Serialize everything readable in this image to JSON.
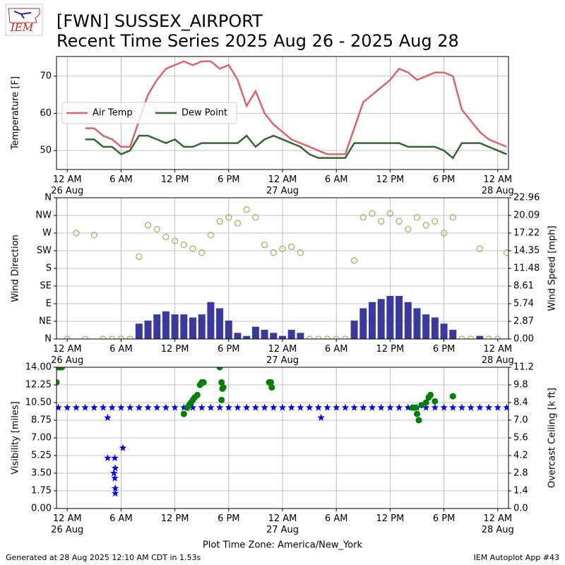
{
  "header": {
    "logo": "IEM",
    "title_line1": "[FWN] SUSSEX_AIRPORT",
    "title_line2": "Recent Time Series 2025 Aug 26 - 2025 Aug 28"
  },
  "footer": {
    "left": "Generated at 28 Aug 2025 12:10 AM CDT in 1.53s",
    "right": "IEM Autoplot App #43"
  },
  "chart_data": [
    {
      "type": "line",
      "ylabel": "Temperature [F]",
      "grid": true,
      "legend": "center left",
      "xlim": [
        -1.2,
        49.2
      ],
      "ylim": [
        44.9,
        75.3
      ],
      "yticks": [
        50,
        60,
        70
      ],
      "xticks": [
        {
          "value": 0,
          "label": "12 AM\n26 Aug"
        },
        {
          "value": 6,
          "label": "6 AM"
        },
        {
          "value": 12,
          "label": "12 PM"
        },
        {
          "value": 18,
          "label": "6 PM"
        },
        {
          "value": 24,
          "label": "12 AM\n27 Aug"
        },
        {
          "value": 30,
          "label": "6 AM"
        },
        {
          "value": 36,
          "label": "12 PM"
        },
        {
          "value": 42,
          "label": "6 PM"
        },
        {
          "value": 48,
          "label": "12 AM\n28 Aug"
        }
      ],
      "x": [
        2,
        3,
        4,
        5,
        6,
        7,
        8,
        9,
        10,
        11,
        12,
        13,
        14,
        15,
        16,
        17,
        18,
        19,
        20,
        21,
        22,
        23,
        24,
        25,
        26,
        27,
        28,
        29,
        30,
        31,
        32,
        33,
        34,
        35,
        36,
        37,
        38,
        39,
        40,
        41,
        42,
        43,
        44,
        45,
        46,
        47,
        48,
        49
      ],
      "series": [
        {
          "name": "Air Temp",
          "color": "#d9646a",
          "values": [
            56,
            56,
            54,
            53,
            51,
            51,
            58,
            65,
            69,
            72,
            73,
            74,
            73,
            74,
            74,
            72,
            73,
            69,
            62,
            66,
            60,
            57,
            55,
            53,
            52,
            51,
            50,
            49,
            49,
            49,
            56,
            63,
            65,
            67,
            69,
            72,
            71,
            69,
            70,
            71,
            71,
            70,
            61,
            58,
            55,
            53,
            52,
            51
          ]
        },
        {
          "name": "Dew Point",
          "color": "#336633",
          "values": [
            53,
            53,
            51,
            51,
            49,
            50,
            54,
            54,
            53,
            52,
            53,
            51,
            51,
            52,
            52,
            52,
            52,
            52,
            54,
            51,
            53,
            54,
            53,
            52,
            51,
            49,
            48,
            48,
            48,
            48,
            52,
            52,
            52,
            52,
            52,
            52,
            51,
            51,
            51,
            51,
            50,
            48,
            52,
            52,
            52,
            51,
            50,
            49
          ]
        }
      ]
    },
    {
      "type": "scatter",
      "ylabel": "Wind Direction",
      "y2label": "Wind Speed [mph]",
      "grid": true,
      "xlim": [
        -1.2,
        49.2
      ],
      "ylim": [
        0,
        360
      ],
      "y2lim": [
        0,
        22.96
      ],
      "yticks": [
        {
          "value": 0,
          "label": "N"
        },
        {
          "value": 45,
          "label": "NE"
        },
        {
          "value": 90,
          "label": "E"
        },
        {
          "value": 135,
          "label": "SE"
        },
        {
          "value": 180,
          "label": "S"
        },
        {
          "value": 225,
          "label": "SW"
        },
        {
          "value": 270,
          "label": "W"
        },
        {
          "value": 315,
          "label": "NW"
        },
        {
          "value": 360,
          "label": "N"
        }
      ],
      "y2ticks": [
        {
          "value": 0,
          "label": "0.00"
        },
        2.87,
        5.74,
        8.61,
        11.48,
        14.35,
        17.22,
        20.09,
        22.96
      ],
      "xticks": [
        {
          "value": 0,
          "label": "12 AM\n26 Aug"
        },
        {
          "value": 6,
          "label": "6 AM"
        },
        {
          "value": 12,
          "label": "12 PM"
        },
        {
          "value": 18,
          "label": "6 PM"
        },
        {
          "value": 24,
          "label": "12 AM\n27 Aug"
        },
        {
          "value": 30,
          "label": "6 AM"
        },
        {
          "value": 36,
          "label": "12 PM"
        },
        {
          "value": 42,
          "label": "6 PM"
        },
        {
          "value": 48,
          "label": "12 AM\n28 Aug"
        }
      ],
      "x": [
        0,
        1,
        2,
        3,
        4,
        5,
        6,
        7,
        8,
        9,
        10,
        11,
        12,
        13,
        14,
        15,
        16,
        17,
        18,
        19,
        20,
        21,
        22,
        23,
        24,
        25,
        26,
        27,
        28,
        29,
        30,
        31,
        32,
        33,
        34,
        35,
        36,
        37,
        38,
        39,
        40,
        41,
        42,
        43,
        44,
        45,
        46,
        47,
        48,
        49
      ],
      "series": [
        {
          "type": "bar",
          "axis": "y2",
          "color": "#3a3a9e",
          "values": [
            0,
            0,
            0,
            0,
            0,
            0,
            0,
            0,
            2.5,
            3,
            4,
            4.5,
            4,
            4,
            3.5,
            4,
            6,
            5,
            3,
            1,
            0.5,
            2,
            1.5,
            1,
            0.5,
            1.5,
            1,
            0,
            0,
            0,
            0,
            0,
            3,
            5,
            6,
            6.5,
            7,
            7,
            6,
            5,
            4,
            3.5,
            2.5,
            1.5,
            0,
            0,
            0.5,
            0,
            0,
            0
          ]
        },
        {
          "type": "scatter",
          "marker": "circle-open",
          "color": "#b5b878",
          "values": [
            0,
            270,
            0,
            265,
            0,
            0,
            0,
            0,
            210,
            290,
            280,
            260,
            250,
            240,
            230,
            220,
            265,
            300,
            310,
            295,
            330,
            310,
            240,
            220,
            230,
            235,
            220,
            0,
            0,
            0,
            0,
            0,
            200,
            310,
            320,
            300,
            320,
            300,
            280,
            310,
            290,
            300,
            270,
            310,
            0,
            0,
            230,
            0,
            0,
            220
          ]
        }
      ]
    },
    {
      "type": "scatter",
      "ylabel": "Visibility [miles]",
      "y2label": "Overcast Ceiling [k ft]",
      "y2label_color": "#008000",
      "xlabel": "Plot Time Zone: America/New_York",
      "grid": true,
      "xlim": [
        -1.2,
        49.2
      ],
      "ylim": [
        0,
        14
      ],
      "y2lim": [
        0,
        11.2
      ],
      "yticks": [
        {
          "value": 0,
          "label": "0.00"
        },
        1.75,
        {
          "value": 3.5,
          "label": "3.50"
        },
        5.25,
        {
          "value": 7,
          "label": "7.00"
        },
        8.75,
        {
          "value": 10.5,
          "label": "10.50"
        },
        12.25,
        {
          "value": 14,
          "label": "14.00"
        }
      ],
      "y2ticks": [
        {
          "value": 0,
          "label": "0.0"
        },
        1.4,
        2.8,
        4.2,
        5.6,
        {
          "value": 7,
          "label": "7.0"
        },
        8.4,
        9.8,
        11.2
      ],
      "xticks": [
        {
          "value": 0,
          "label": "12 AM\n26 Aug"
        },
        {
          "value": 6,
          "label": "6 AM"
        },
        {
          "value": 12,
          "label": "12 PM"
        },
        {
          "value": 18,
          "label": "6 PM"
        },
        {
          "value": 24,
          "label": "12 AM\n27 Aug"
        },
        {
          "value": 30,
          "label": "6 AM"
        },
        {
          "value": 36,
          "label": "12 PM"
        },
        {
          "value": 42,
          "label": "6 PM"
        },
        {
          "value": 48,
          "label": "12 AM\n28 Aug"
        }
      ],
      "series": [
        {
          "type": "scatter",
          "marker": "star",
          "color": "#0000ff",
          "x": [
            -1,
            0,
            1,
            2,
            3,
            4,
            5,
            6,
            7,
            8,
            9,
            10,
            11,
            12,
            13,
            14,
            15,
            16,
            17,
            18,
            19,
            20,
            21,
            22,
            23,
            24,
            25,
            26,
            27,
            28,
            29,
            30,
            31,
            32,
            33,
            34,
            35,
            36,
            37,
            38,
            39,
            40,
            41,
            42,
            43,
            44,
            45,
            46,
            47,
            48,
            49,
            4.5,
            4.5,
            5.3,
            5.35,
            5.2,
            5.3,
            5.35,
            5.35,
            6.2,
            28.3
          ],
          "values": [
            10,
            10,
            10,
            10,
            10,
            10,
            10,
            10,
            10,
            10,
            10,
            10,
            10,
            10,
            10,
            10,
            10,
            10,
            10,
            10,
            10,
            10,
            10,
            10,
            10,
            10,
            10,
            10,
            10,
            10,
            10,
            10,
            10,
            10,
            10,
            10,
            10,
            10,
            10,
            10,
            10,
            10,
            10,
            10,
            10,
            10,
            10,
            10,
            10,
            10,
            10,
            9,
            5,
            5,
            4,
            3.5,
            3,
            2,
            1.5,
            6,
            9
          ]
        },
        {
          "type": "scatter",
          "marker": "circle",
          "axis": "y2",
          "color": "#008000",
          "x": [
            -1.2,
            -1,
            -0.8,
            -0.6,
            13,
            13.4,
            13.6,
            13.8,
            14,
            14.2,
            14.5,
            14.8,
            15,
            15.2,
            17,
            17.2,
            17.3,
            17.2,
            17.4,
            22.5,
            22.7,
            22.8,
            38.5,
            38.8,
            39,
            39.2,
            39.5,
            40,
            40.3,
            40.5,
            41,
            43
          ],
          "values": [
            10,
            11.2,
            11.2,
            11.2,
            7.5,
            8,
            8.2,
            8.4,
            8.6,
            8.8,
            9,
            9.8,
            10,
            10,
            11.2,
            10,
            9.5,
            8.6,
            9.6,
            10,
            10,
            9.6,
            8,
            8,
            7.5,
            7,
            8.2,
            8.4,
            8.8,
            9,
            8.5,
            8.9
          ]
        }
      ]
    }
  ]
}
